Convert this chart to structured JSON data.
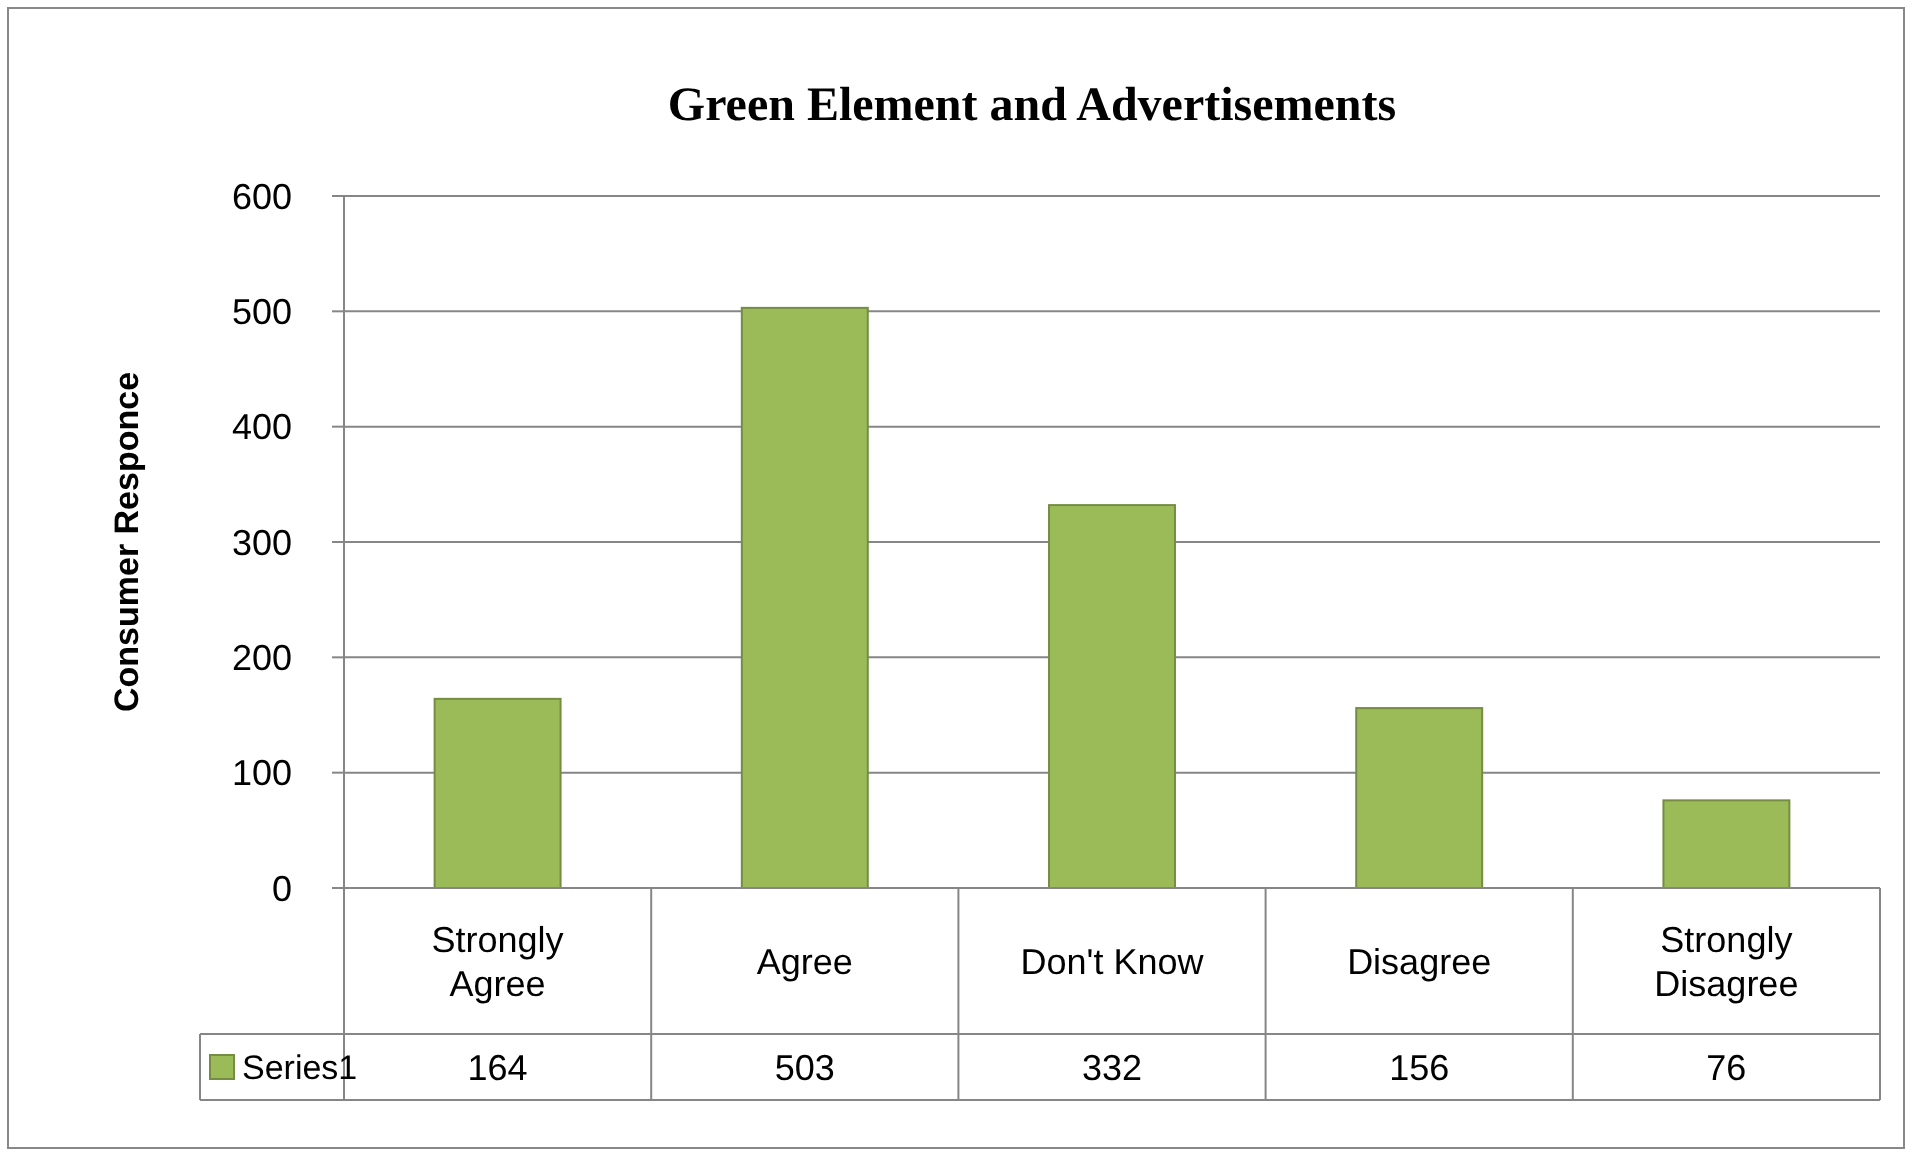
{
  "chart_data": {
    "type": "bar",
    "title": "Green Element and Advertisements",
    "ylabel": "Consumer Responce",
    "categories": [
      "Strongly Agree",
      "Agree",
      "Don't Know",
      "Disagree",
      "Strongly Disagree"
    ],
    "series": [
      {
        "name": "Series1",
        "color": "#9bbb59",
        "values": [
          164,
          503,
          332,
          156,
          76
        ]
      }
    ],
    "ylim": [
      0,
      600
    ],
    "yticks": [
      0,
      100,
      200,
      300,
      400,
      500,
      600
    ],
    "grid": "y",
    "legend": "bottom left",
    "data_labels": true
  }
}
